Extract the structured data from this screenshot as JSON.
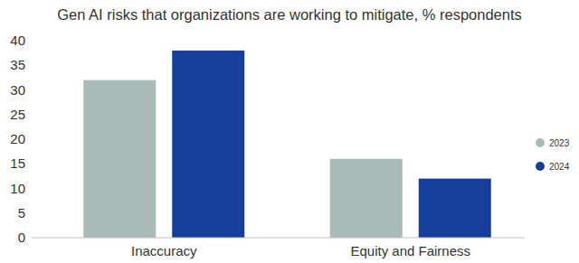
{
  "chart_data": {
    "type": "bar",
    "title": "Gen AI risks that organizations are working to mitigate, % respondents",
    "categories": [
      "Inaccuracy",
      "Equity and Fairness"
    ],
    "series": [
      {
        "name": "2023",
        "color": "#a9bbb6",
        "values": [
          32,
          16
        ]
      },
      {
        "name": "2024",
        "color": "#153f9a",
        "values": [
          38,
          12
        ]
      }
    ],
    "ylim": [
      0,
      40
    ],
    "yticks": [
      0,
      5,
      10,
      15,
      20,
      25,
      30,
      35,
      40
    ],
    "grid": false,
    "legend": "right"
  }
}
